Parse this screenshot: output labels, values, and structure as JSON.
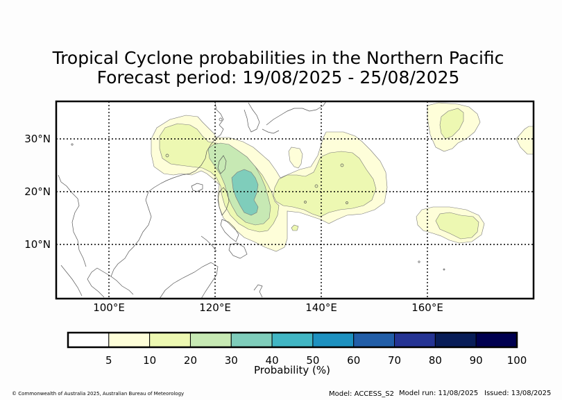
{
  "title": {
    "line1": "Tropical Cyclone probabilities in the Northern Pacific",
    "line2": "Forecast period: 19/08/2025 - 25/08/2025"
  },
  "map": {
    "lat_labels": [
      "30°N",
      "20°N",
      "10°N"
    ],
    "lon_labels": [
      "100°E",
      "120°E",
      "140°E",
      "160°E"
    ],
    "grid_style": "dotted",
    "lon_range": [
      90,
      180
    ],
    "lat_range": [
      0,
      37
    ]
  },
  "colorbar": {
    "title": "Probability (%)",
    "ticks": [
      "5",
      "10",
      "20",
      "30",
      "40",
      "50",
      "60",
      "70",
      "80",
      "90",
      "100"
    ],
    "colors": [
      "#ffffff",
      "#fefed9",
      "#edf8b2",
      "#c7e9b4",
      "#7fcdbb",
      "#41b6c4",
      "#1d91c0",
      "#225ea8",
      "#253494",
      "#081d58",
      "#000050"
    ]
  },
  "probability_levels": {
    "5": "#fefed9",
    "10": "#edf8b2",
    "20": "#c7e9b4",
    "30": "#7fcdbb"
  },
  "footer": {
    "copyright": "© Commonwealth of Australia 2025, Australian Bureau of Meteorology",
    "model": "Model: ACCESS_S2",
    "model_run": "Model run: 11/08/2025",
    "issued": "Issued: 13/08/2025"
  }
}
